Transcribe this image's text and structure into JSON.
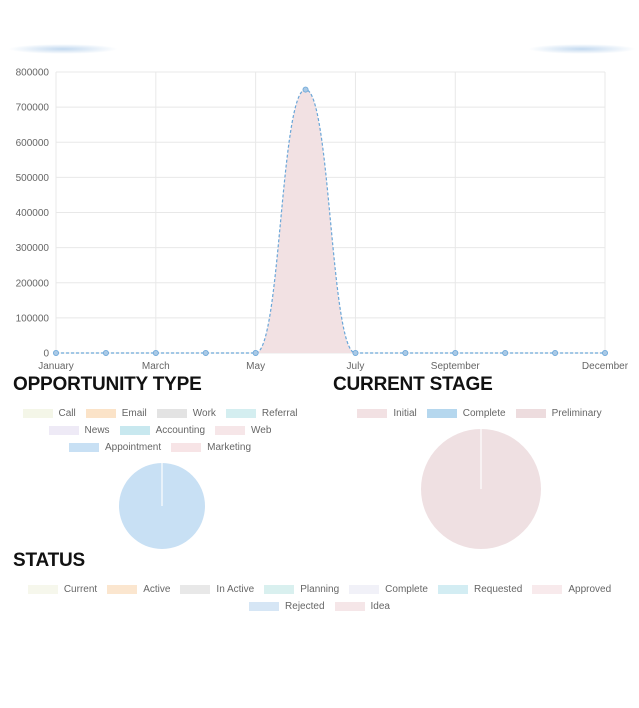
{
  "line_chart": {
    "y_ticks": [
      "800000",
      "700000",
      "600000",
      "500000",
      "400000",
      "300000",
      "200000",
      "100000",
      "0"
    ],
    "x_labels": [
      "January",
      "March",
      "May",
      "July",
      "September",
      "December"
    ]
  },
  "chart_data": [
    {
      "type": "area",
      "x": [
        "January",
        "February",
        "March",
        "April",
        "May",
        "June",
        "July",
        "August",
        "September",
        "October",
        "November",
        "December"
      ],
      "series": [
        {
          "values": [
            0,
            0,
            0,
            0,
            0,
            750000,
            0,
            0,
            0,
            0,
            0,
            0
          ]
        }
      ],
      "ylim": [
        0,
        800000
      ],
      "x_tick_labels": [
        "January",
        "March",
        "May",
        "July",
        "September",
        "December"
      ],
      "grid": true,
      "colors": {
        "fill": "#f2e1e3",
        "line": "#6aa6d8",
        "point": "#a9c9e6"
      }
    },
    {
      "type": "pie",
      "title": "OPPORTUNITY TYPE",
      "legend": [
        "Call",
        "Email",
        "Work",
        "Referral",
        "News",
        "Accounting",
        "Web",
        "Appointment",
        "Marketing"
      ],
      "colors": [
        "#f4f6e8",
        "#fbe3c8",
        "#e3e3e3",
        "#d4eef0",
        "#eeeaf6",
        "#c8e8ef",
        "#f6e6e8",
        "#c8e0f4",
        "#f7e4e6"
      ],
      "slices": [
        {
          "label": "Appointment",
          "value": 100,
          "color": "#c8e0f4"
        }
      ]
    },
    {
      "type": "pie",
      "title": "CURRENT STAGE",
      "legend": [
        "Initial",
        "Complete",
        "Preliminary"
      ],
      "colors": [
        "#f2e1e3",
        "#b5d7ee",
        "#eddcde"
      ],
      "slices": [
        {
          "label": "Initial",
          "value": 100,
          "color": "#efe0e2"
        }
      ]
    },
    {
      "type": "pie",
      "title": "STATUS",
      "legend": [
        "Current",
        "Active",
        "In Active",
        "Planning",
        "Complete",
        "Requested",
        "Approved",
        "Rejected",
        "Idea"
      ],
      "colors": [
        "#f6f7ec",
        "#fbe6cf",
        "#e8e8e8",
        "#d9f0ef",
        "#f1f1f8",
        "#d3edf3",
        "#f8eaec",
        "#d6e6f5",
        "#f5e6e8"
      ],
      "slices": []
    }
  ],
  "sections": {
    "opportunity_type": {
      "title": "OPPORTUNITY TYPE",
      "legend_rows": [
        [
          {
            "label": "Call",
            "color": "#f4f6e8"
          },
          {
            "label": "Email",
            "color": "#fbe3c8"
          },
          {
            "label": "Work",
            "color": "#e3e3e3"
          },
          {
            "label": "Referral",
            "color": "#d4eef0"
          }
        ],
        [
          {
            "label": "News",
            "color": "#eeeaf6"
          },
          {
            "label": "Accounting",
            "color": "#c8e8ef"
          },
          {
            "label": "Web",
            "color": "#f6e6e8"
          }
        ],
        [
          {
            "label": "Appointment",
            "color": "#c8e0f4"
          },
          {
            "label": "Marketing",
            "color": "#f7e4e6"
          }
        ]
      ]
    },
    "current_stage": {
      "title": "CURRENT STAGE",
      "legend_rows": [
        [
          {
            "label": "Initial",
            "color": "#f2e1e3"
          },
          {
            "label": "Complete",
            "color": "#b5d7ee"
          },
          {
            "label": "Preliminary",
            "color": "#eddcde"
          }
        ]
      ]
    },
    "status": {
      "title": "STATUS",
      "legend_rows": [
        [
          {
            "label": "Current",
            "color": "#f6f7ec"
          },
          {
            "label": "Active",
            "color": "#fbe6cf"
          },
          {
            "label": "In Active",
            "color": "#e8e8e8"
          },
          {
            "label": "Planning",
            "color": "#d9f0ef"
          },
          {
            "label": "Complete",
            "color": "#f1f1f8"
          },
          {
            "label": "Requested",
            "color": "#d3edf3"
          },
          {
            "label": "Approved",
            "color": "#f8eaec"
          }
        ],
        [
          {
            "label": "Rejected",
            "color": "#d6e6f5"
          },
          {
            "label": "Idea",
            "color": "#f5e6e8"
          }
        ]
      ]
    }
  }
}
